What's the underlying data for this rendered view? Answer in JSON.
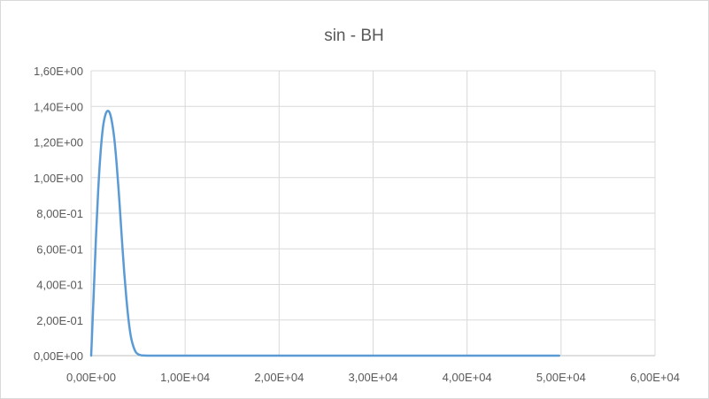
{
  "chart_data": {
    "type": "line",
    "title": "sin - BH",
    "xlabel": "",
    "ylabel": "",
    "xlim": [
      0,
      60000
    ],
    "ylim": [
      0,
      1.6
    ],
    "x_ticks": [
      0,
      10000,
      20000,
      30000,
      40000,
      50000,
      60000
    ],
    "x_tick_labels": [
      "0,00E+00",
      "1,00E+04",
      "2,00E+04",
      "3,00E+04",
      "4,00E+04",
      "5,00E+04",
      "6,00E+04"
    ],
    "y_ticks": [
      0,
      0.2,
      0.4,
      0.6,
      0.8,
      1.0,
      1.2,
      1.4,
      1.6
    ],
    "y_tick_labels": [
      "0,00E+00",
      "2,00E-01",
      "4,00E-01",
      "6,00E-01",
      "8,00E-01",
      "1,00E+00",
      "1,20E+00",
      "1,40E+00",
      "1,60E+00"
    ],
    "grid": true,
    "legend": "none",
    "series": [
      {
        "color": "#5b9bd5",
        "x": [
          0,
          250,
          500,
          750,
          1000,
          1250,
          1500,
          1750,
          2000,
          2250,
          2500,
          2750,
          3000,
          3250,
          3500,
          3750,
          4000,
          4250,
          4500,
          4750,
          5000,
          5250,
          5500,
          6000,
          7000,
          10000,
          20000,
          30000,
          40000,
          49800
        ],
        "y": [
          0,
          0.32,
          0.65,
          0.93,
          1.14,
          1.28,
          1.35,
          1.375,
          1.36,
          1.3,
          1.2,
          1.05,
          0.87,
          0.67,
          0.48,
          0.32,
          0.19,
          0.1,
          0.05,
          0.02,
          0.008,
          0.003,
          0.001,
          0,
          0,
          0,
          0,
          0,
          0,
          0
        ]
      }
    ]
  }
}
